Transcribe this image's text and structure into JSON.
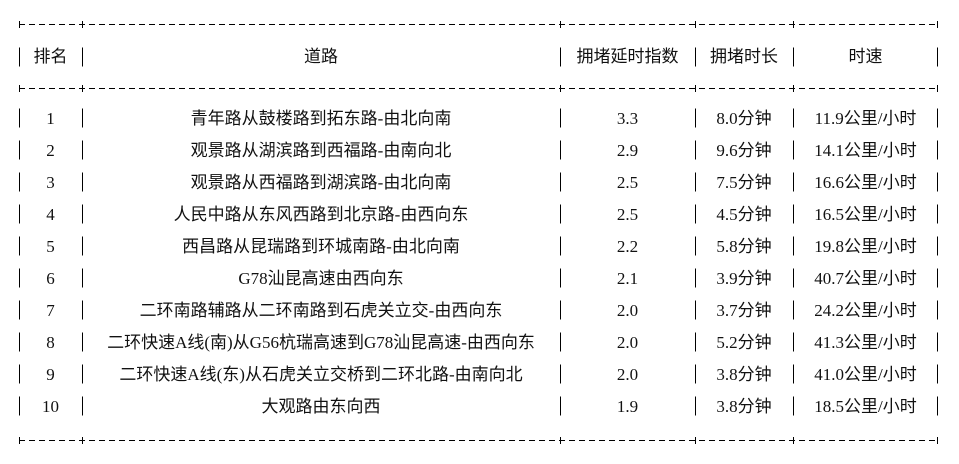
{
  "table": {
    "headers": [
      "排名",
      "道路",
      "拥堵延时指数",
      "拥堵时长",
      "时速"
    ],
    "rows": [
      {
        "rank": "1",
        "road": "青年路从鼓楼路到拓东路-由北向南",
        "delay_index": "3.3",
        "duration": "8.0分钟",
        "speed": "11.9公里/小时"
      },
      {
        "rank": "2",
        "road": "观景路从湖滨路到西福路-由南向北",
        "delay_index": "2.9",
        "duration": "9.6分钟",
        "speed": "14.1公里/小时"
      },
      {
        "rank": "3",
        "road": "观景路从西福路到湖滨路-由北向南",
        "delay_index": "2.5",
        "duration": "7.5分钟",
        "speed": "16.6公里/小时"
      },
      {
        "rank": "4",
        "road": "人民中路从东风西路到北京路-由西向东",
        "delay_index": "2.5",
        "duration": "4.5分钟",
        "speed": "16.5公里/小时"
      },
      {
        "rank": "5",
        "road": "西昌路从昆瑞路到环城南路-由北向南",
        "delay_index": "2.2",
        "duration": "5.8分钟",
        "speed": "19.8公里/小时"
      },
      {
        "rank": "6",
        "road": "G78汕昆高速由西向东",
        "delay_index": "2.1",
        "duration": "3.9分钟",
        "speed": "40.7公里/小时"
      },
      {
        "rank": "7",
        "road": "二环南路辅路从二环南路到石虎关立交-由西向东",
        "delay_index": "2.0",
        "duration": "3.7分钟",
        "speed": "24.2公里/小时"
      },
      {
        "rank": "8",
        "road": "二环快速A线(南)从G56杭瑞高速到G78汕昆高速-由西向东",
        "delay_index": "2.0",
        "duration": "5.2分钟",
        "speed": "41.3公里/小时"
      },
      {
        "rank": "9",
        "road": "二环快速A线(东)从石虎关立交桥到二环北路-由南向北",
        "delay_index": "2.0",
        "duration": "3.8分钟",
        "speed": "41.0公里/小时"
      },
      {
        "rank": "10",
        "road": "大观路由东向西",
        "delay_index": "1.9",
        "duration": "3.8分钟",
        "speed": "18.5公里/小时"
      }
    ]
  },
  "colors": {
    "background": "#ffffff",
    "text": "#111111",
    "border": "#000000"
  }
}
